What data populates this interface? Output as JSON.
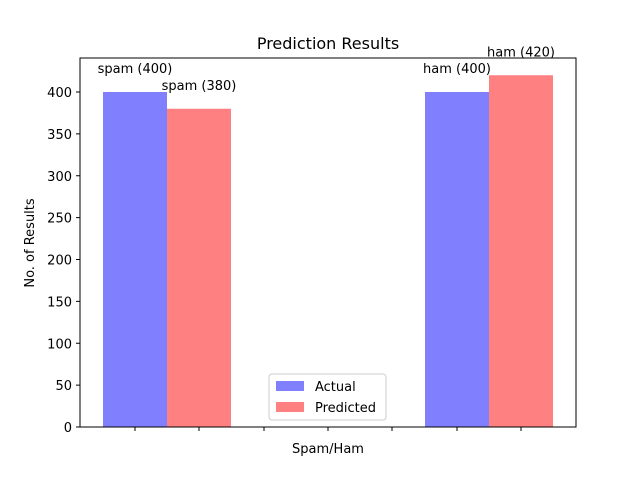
{
  "chart_data": {
    "type": "bar",
    "title": "Prediction Results",
    "xlabel": "Spam/Ham",
    "ylabel": "No. of Results",
    "ylim": [
      0,
      440
    ],
    "yticks": [
      0,
      50,
      100,
      150,
      200,
      250,
      300,
      350,
      400
    ],
    "groups": [
      {
        "bars": [
          {
            "series": "Actual",
            "value": 400,
            "label": "spam (400)"
          },
          {
            "series": "Predicted",
            "value": 380,
            "label": "spam (380)"
          }
        ]
      },
      {
        "bars": [
          {
            "series": "Actual",
            "value": 400,
            "label": "ham (400)"
          },
          {
            "series": "Predicted",
            "value": 420,
            "label": "ham (420)"
          }
        ]
      }
    ],
    "series": [
      {
        "name": "Actual",
        "color": "#8080ff"
      },
      {
        "name": "Predicted",
        "color": "#ff8080"
      }
    ],
    "legend": {
      "placement": "lower center",
      "entries": [
        "Actual",
        "Predicted"
      ]
    },
    "grid": false
  }
}
